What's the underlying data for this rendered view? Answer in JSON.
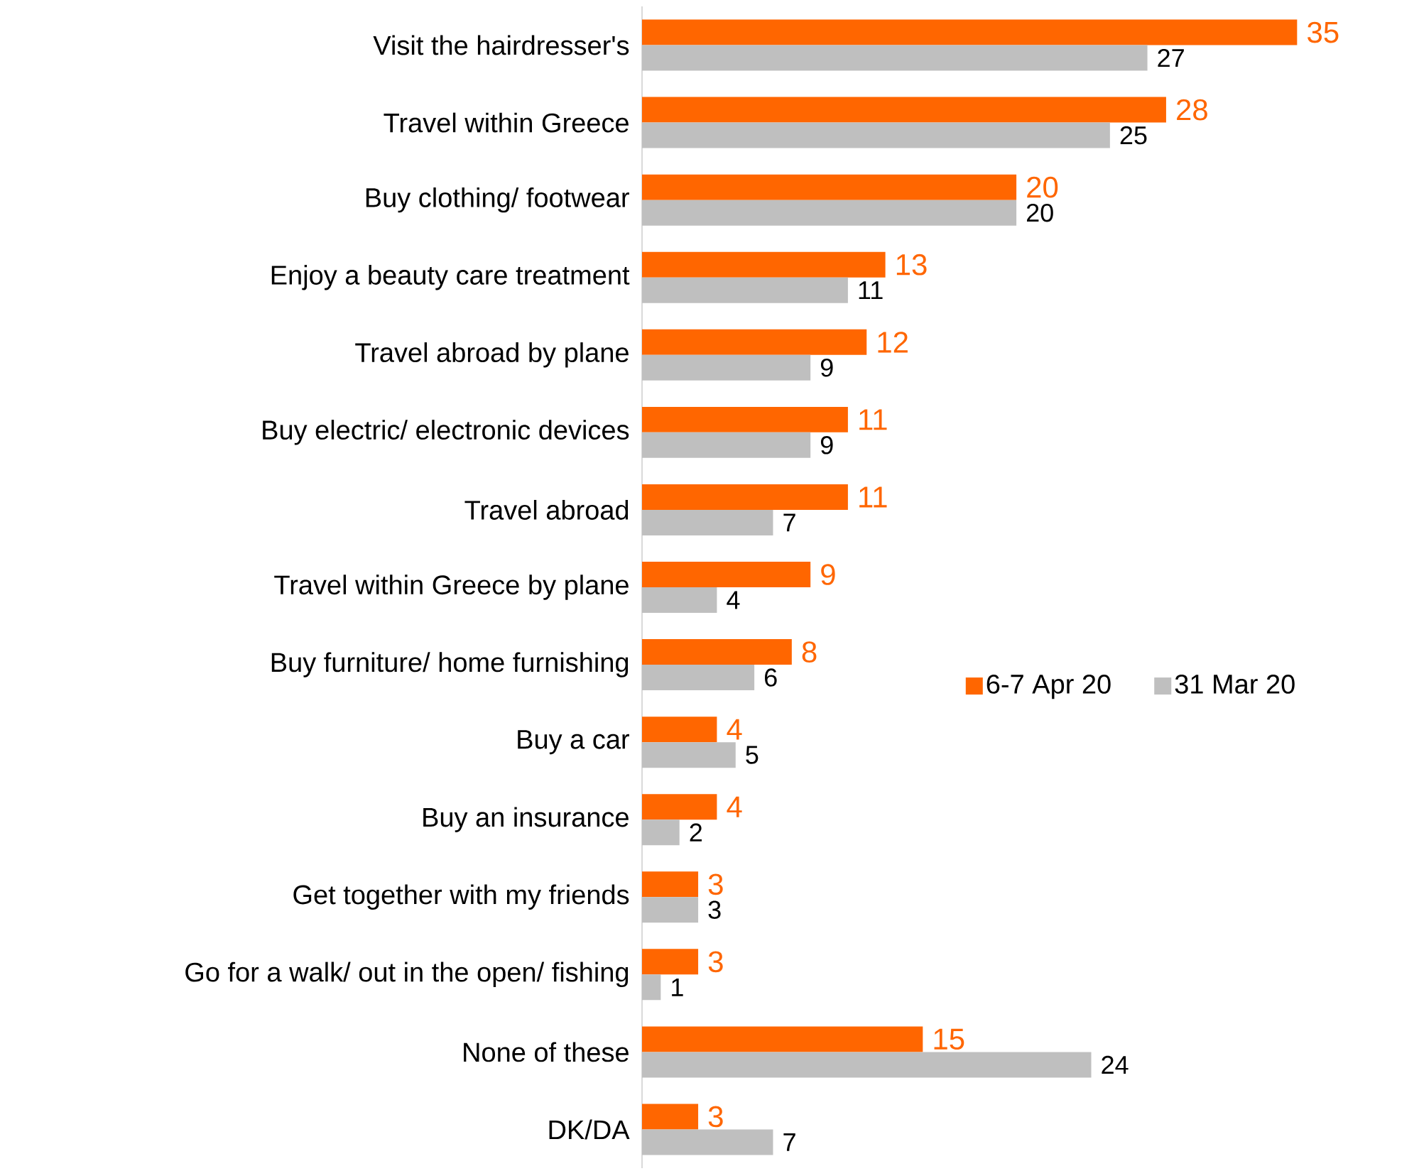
{
  "chart_data": {
    "type": "bar",
    "orientation": "horizontal",
    "data_labels": true,
    "legend": "right",
    "categories": [
      "Visit the hairdresser's",
      "Travel within Greece",
      "Buy clothing/ footwear",
      "Enjoy a beauty care treatment",
      "Travel abroad by plane",
      "Buy electric/ electronic devices",
      "Travel abroad",
      "Travel within Greece by plane",
      "Buy furniture/ home furnishing",
      "Buy a car",
      "Buy an insurance",
      "Get together with my friends",
      "Go for a walk/ out in the open/ fishing",
      "None of these",
      "DK/DA"
    ],
    "series": [
      {
        "name": "6-7 Apr 20",
        "color": "#ff6600",
        "values": [
          35,
          28,
          20,
          13,
          12,
          11,
          11,
          9,
          8,
          4,
          4,
          3,
          3,
          15,
          3
        ]
      },
      {
        "name": "31 Mar 20",
        "color": "#bfbfbf",
        "values": [
          27,
          25,
          20,
          11,
          9,
          9,
          7,
          4,
          6,
          5,
          2,
          3,
          1,
          24,
          7
        ]
      }
    ]
  }
}
